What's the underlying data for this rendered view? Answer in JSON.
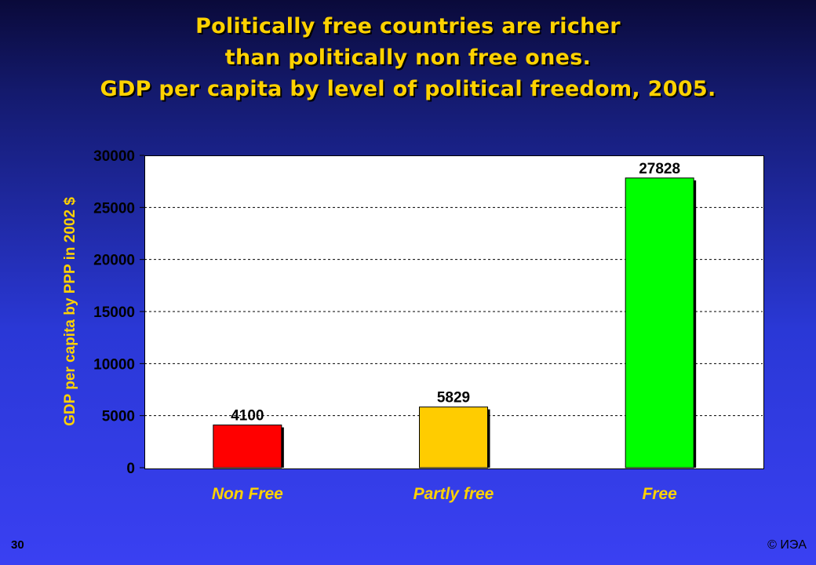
{
  "slide": {
    "title_lines": [
      "Politically free countries are richer",
      "than politically non free ones.",
      "GDP per capita by level of political freedom, 2005."
    ],
    "page_number": "30",
    "copyright": "© ИЭА"
  },
  "chart_data": {
    "type": "bar",
    "title": "",
    "xlabel": "",
    "ylabel": "GDP per capita by PPP in 2002 $",
    "categories": [
      "Non Free",
      "Partly free",
      "Free"
    ],
    "values": [
      4100,
      5829,
      27828
    ],
    "data_labels": [
      "4100",
      "5829",
      "27828"
    ],
    "bar_colors": [
      "#ff0000",
      "#ffcc00",
      "#00ff00"
    ],
    "ylim": [
      0,
      30000
    ],
    "yticks": [
      0,
      5000,
      10000,
      15000,
      20000,
      25000,
      30000
    ],
    "ytick_labels": [
      "0",
      "5000",
      "10000",
      "15000",
      "20000",
      "25000",
      "30000"
    ],
    "grid": true,
    "legend": "none"
  }
}
